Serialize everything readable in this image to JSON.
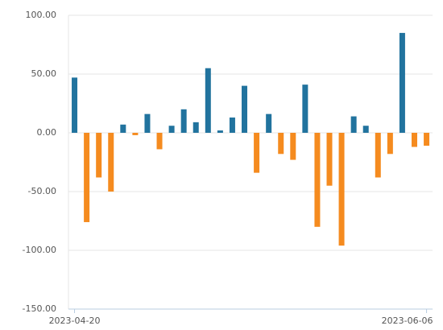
{
  "chart_data": {
    "type": "bar",
    "categories": [
      "2023-04-20",
      null,
      null,
      null,
      null,
      null,
      null,
      null,
      null,
      null,
      null,
      null,
      null,
      null,
      null,
      null,
      null,
      null,
      null,
      null,
      null,
      null,
      null,
      null,
      null,
      null,
      null,
      null,
      null,
      "2023-06-06"
    ],
    "values": [
      47,
      -76,
      -38,
      -50,
      7,
      -2,
      16,
      -14,
      6,
      20,
      9,
      55,
      2,
      13,
      40,
      -34,
      16,
      -18,
      -23,
      41,
      -80,
      -45,
      -96,
      14,
      6,
      -38,
      -18,
      85,
      -12,
      -11
    ],
    "positive_color": "#21739e",
    "negative_color": "#f58b1f",
    "ylim": [
      -150,
      100
    ],
    "yticks": [
      {
        "value": -150,
        "label": "-150.00"
      },
      {
        "value": -100,
        "label": "-100.00"
      },
      {
        "value": -50,
        "label": "-50.00"
      },
      {
        "value": 0,
        "label": "0.00"
      },
      {
        "value": 50,
        "label": "50.00"
      },
      {
        "value": 100,
        "label": "100.00"
      }
    ],
    "grid": true
  }
}
